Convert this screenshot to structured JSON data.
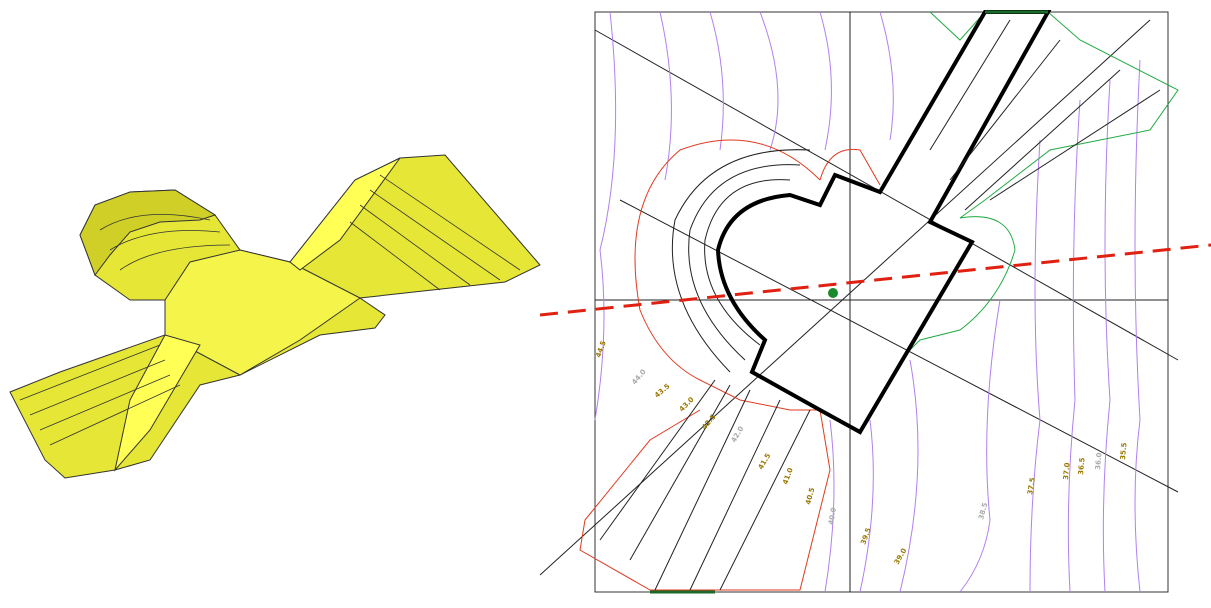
{
  "contour_labels": [
    "44.5",
    "44.0",
    "43.5",
    "43.0",
    "42.5",
    "42.0",
    "41.5",
    "41.0",
    "40.5",
    "40.0",
    "39.5",
    "39.0",
    "38.5",
    "37.5",
    "37.0",
    "36.5",
    "36.0",
    "35.5"
  ]
}
